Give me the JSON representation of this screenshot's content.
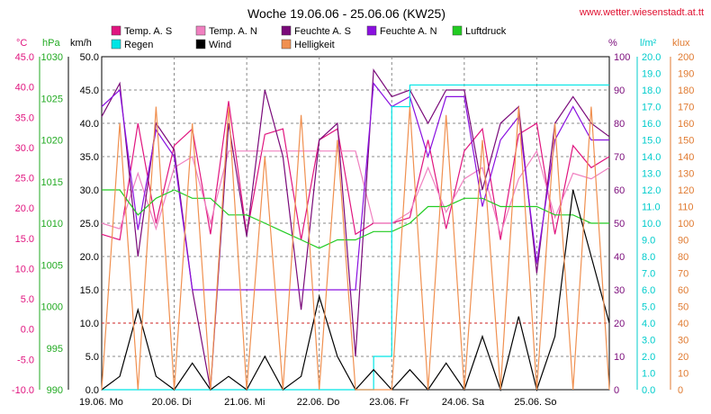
{
  "header": {
    "title": "Woche 19.06.06 - 25.06.06 (KW25)",
    "url": "www.wetter.wiesenstadt.at.tt"
  },
  "legend": [
    {
      "label": "Temp. A. S",
      "color": "#e0157f"
    },
    {
      "label": "Temp. A. N",
      "color": "#f080c0"
    },
    {
      "label": "Feuchte A. S",
      "color": "#7a0a7a"
    },
    {
      "label": "Feuchte A. N",
      "color": "#8a10e0"
    },
    {
      "label": "Luftdruck",
      "color": "#22cc22"
    },
    {
      "label": "Regen",
      "color": "#00e5e5"
    },
    {
      "label": "Wind",
      "color": "#000000"
    },
    {
      "label": "Helligkeit",
      "color": "#f09050"
    }
  ],
  "axes": {
    "temp": {
      "unit": "°C",
      "color": "#e0157f",
      "ticks": [
        "45.0",
        "40.0",
        "35.0",
        "30.0",
        "25.0",
        "20.0",
        "15.0",
        "10.0",
        "5.0",
        "0.0",
        "-5.0",
        "-10.0"
      ]
    },
    "pressure": {
      "unit": "hPa",
      "color": "#22aa22",
      "ticks": [
        "1030",
        "1025",
        "1020",
        "1015",
        "1010",
        "1005",
        "1000",
        "995",
        "990"
      ]
    },
    "wind": {
      "unit": "km/h",
      "color": "#000000",
      "ticks": [
        "50.0",
        "45.0",
        "40.0",
        "35.0",
        "30.0",
        "25.0",
        "20.0",
        "15.0",
        "10.0",
        "5.0",
        "0.0"
      ]
    },
    "humidity": {
      "unit": "%",
      "color": "#7a0a7a",
      "ticks": [
        "100",
        "90",
        "80",
        "70",
        "60",
        "50",
        "40",
        "30",
        "20",
        "10",
        "0"
      ]
    },
    "rain": {
      "unit": "l/m²",
      "color": "#00cccc",
      "ticks": [
        "20.0",
        "19.0",
        "18.0",
        "17.0",
        "16.0",
        "15.0",
        "14.0",
        "13.0",
        "12.0",
        "11.0",
        "10.0",
        "9.0",
        "8.0",
        "7.0",
        "6.0",
        "5.0",
        "4.0",
        "3.0",
        "2.0",
        "1.0",
        "0.0"
      ]
    },
    "light": {
      "unit": "klux",
      "color": "#e07a30",
      "ticks": [
        "200",
        "190",
        "180",
        "170",
        "160",
        "150",
        "140",
        "130",
        "120",
        "110",
        "100",
        "90",
        "80",
        "70",
        "60",
        "50",
        "40",
        "30",
        "20",
        "10",
        "0"
      ]
    }
  },
  "xaxis": {
    "labels": [
      "19.06. Mo",
      "20.06. Di",
      "21.06. Mi",
      "22.06. Do",
      "23.06. Fr",
      "24.06. Sa",
      "25.06. So"
    ]
  },
  "chart_data": {
    "type": "line",
    "x": [
      0,
      0.25,
      0.5,
      0.75,
      1,
      1.25,
      1.5,
      1.75,
      2,
      2.25,
      2.5,
      2.75,
      3,
      3.25,
      3.5,
      3.75,
      4,
      4.25,
      4.5,
      4.75,
      5,
      5.25,
      5.5,
      5.75,
      6,
      6.25,
      6.5,
      6.75,
      7
    ],
    "x_unit": "days from 19.06. 00:00",
    "series": [
      {
        "name": "Temp. A. S",
        "axis": "temp",
        "values": [
          18,
          17,
          38,
          20,
          34,
          37,
          18,
          42,
          18,
          36,
          37,
          17,
          35,
          37,
          18,
          20,
          20,
          21,
          35,
          19,
          33,
          37,
          17,
          36,
          38,
          18,
          34,
          30,
          32
        ]
      },
      {
        "name": "Temp. A. N",
        "axis": "temp",
        "values": [
          20,
          19,
          29,
          19,
          30,
          32,
          20,
          33,
          33,
          33,
          33,
          33,
          33,
          33,
          33,
          20,
          20,
          22,
          30,
          22,
          28,
          30,
          18,
          28,
          33,
          21,
          29,
          28,
          30
        ]
      },
      {
        "name": "Feuchte A. S",
        "axis": "humidity",
        "values": [
          82,
          92,
          40,
          80,
          72,
          30,
          0,
          80,
          46,
          90,
          70,
          24,
          75,
          80,
          10,
          96,
          88,
          90,
          80,
          90,
          90,
          60,
          80,
          85,
          35,
          80,
          88,
          80,
          76
        ]
      },
      {
        "name": "Feuchte A. N",
        "axis": "humidity",
        "values": [
          85,
          90,
          48,
          78,
          70,
          30,
          30,
          30,
          30,
          30,
          30,
          30,
          30,
          30,
          30,
          92,
          85,
          88,
          70,
          88,
          88,
          55,
          75,
          82,
          38,
          75,
          85,
          75,
          75
        ]
      },
      {
        "name": "Luftdruck",
        "axis": "pressure",
        "values": [
          1014,
          1014,
          1011,
          1013,
          1014,
          1013,
          1013,
          1011,
          1011,
          1010,
          1009,
          1008,
          1007,
          1008,
          1008,
          1009,
          1009,
          1010,
          1012,
          1012,
          1013,
          1013,
          1012,
          1012,
          1012,
          1011,
          1011,
          1010,
          1010
        ]
      },
      {
        "name": "Regen",
        "axis": "rain",
        "values": [
          0,
          0,
          0,
          0,
          0,
          0,
          0,
          0,
          0,
          0,
          0,
          0,
          0,
          0,
          0,
          2,
          17,
          18.3,
          18.3,
          18.3,
          18.3,
          18.3,
          18.3,
          18.3,
          18.3,
          18.3,
          18.3,
          18.3,
          18.3
        ]
      },
      {
        "name": "Wind",
        "axis": "wind",
        "values": [
          0,
          2,
          12,
          2,
          0,
          4,
          0,
          2,
          0,
          5,
          0,
          2,
          14,
          5,
          0,
          3,
          0,
          3,
          0,
          4,
          0,
          8,
          0,
          11,
          0,
          8,
          30,
          20,
          10
        ]
      },
      {
        "name": "Helligkeit",
        "axis": "light",
        "values": [
          0,
          160,
          0,
          170,
          0,
          160,
          0,
          170,
          0,
          140,
          0,
          165,
          0,
          150,
          0,
          0,
          0,
          170,
          0,
          165,
          0,
          150,
          0,
          170,
          0,
          160,
          0,
          170,
          0
        ]
      }
    ],
    "ylim": {
      "temp": [
        -10,
        50
      ],
      "wind": [
        0,
        50
      ],
      "humidity": [
        0,
        100
      ],
      "pressure": [
        990,
        1030
      ],
      "rain": [
        0,
        20
      ],
      "light": [
        0,
        200
      ]
    },
    "grid": true,
    "legend_position": "top"
  }
}
